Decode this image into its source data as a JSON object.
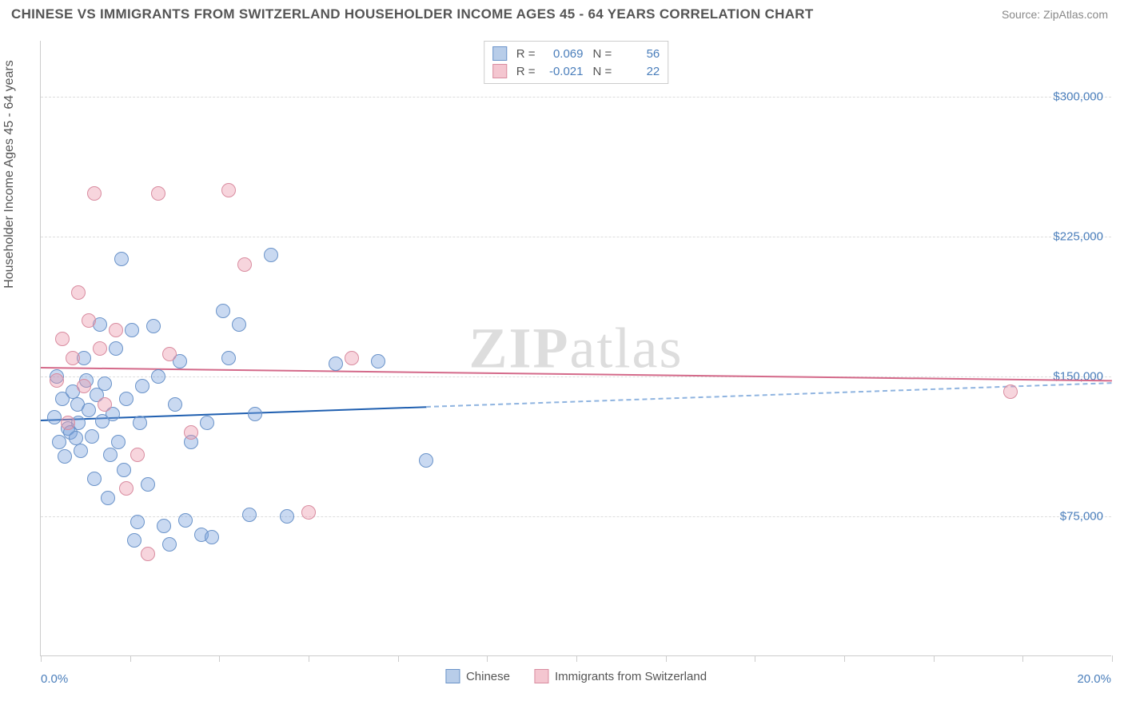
{
  "title": "CHINESE VS IMMIGRANTS FROM SWITZERLAND HOUSEHOLDER INCOME AGES 45 - 64 YEARS CORRELATION CHART",
  "source_label": "Source: ZipAtlas.com",
  "watermark_prefix": "ZIP",
  "watermark_suffix": "atlas",
  "y_axis_label": "Householder Income Ages 45 - 64 years",
  "chart": {
    "type": "scatter",
    "xlim": [
      0,
      20
    ],
    "ylim": [
      0,
      330000
    ],
    "x_tick_positions": [
      0,
      1.67,
      3.33,
      5,
      6.67,
      8.33,
      10,
      11.67,
      13.33,
      15,
      16.67,
      18.33,
      20
    ],
    "x_tick_labels": {
      "start": "0.0%",
      "end": "20.0%"
    },
    "y_ticks": [
      {
        "v": 75000,
        "label": "$75,000"
      },
      {
        "v": 150000,
        "label": "$150,000"
      },
      {
        "v": 225000,
        "label": "$225,000"
      },
      {
        "v": 300000,
        "label": "$300,000"
      }
    ],
    "grid_color": "#dddddd",
    "axis_color": "#cccccc",
    "background_color": "#ffffff",
    "point_radius": 9,
    "series": [
      {
        "name": "Chinese",
        "fill": "rgba(120,160,220,0.40)",
        "stroke": "#6a93c9",
        "swatch_fill": "#b8cde9",
        "swatch_border": "#6a93c9",
        "R": "0.069",
        "N": "56",
        "trend": {
          "y_start": 127000,
          "y_end": 147000,
          "solid_xmax": 7.2,
          "solid_color": "#1f5fb0",
          "dash_color": "#8fb4e0"
        },
        "points": [
          [
            0.25,
            128000
          ],
          [
            0.3,
            150000
          ],
          [
            0.35,
            115000
          ],
          [
            0.4,
            138000
          ],
          [
            0.45,
            107000
          ],
          [
            0.5,
            122000
          ],
          [
            0.55,
            120000
          ],
          [
            0.6,
            142000
          ],
          [
            0.65,
            117000
          ],
          [
            0.68,
            135000
          ],
          [
            0.7,
            125000
          ],
          [
            0.75,
            110000
          ],
          [
            0.8,
            160000
          ],
          [
            0.85,
            148000
          ],
          [
            0.9,
            132000
          ],
          [
            0.95,
            118000
          ],
          [
            1.0,
            95000
          ],
          [
            1.05,
            140000
          ],
          [
            1.1,
            178000
          ],
          [
            1.15,
            126000
          ],
          [
            1.2,
            146000
          ],
          [
            1.25,
            85000
          ],
          [
            1.3,
            108000
          ],
          [
            1.35,
            130000
          ],
          [
            1.4,
            165000
          ],
          [
            1.45,
            115000
          ],
          [
            1.5,
            213000
          ],
          [
            1.55,
            100000
          ],
          [
            1.6,
            138000
          ],
          [
            1.7,
            175000
          ],
          [
            1.75,
            62000
          ],
          [
            1.8,
            72000
          ],
          [
            1.85,
            125000
          ],
          [
            1.9,
            145000
          ],
          [
            2.0,
            92000
          ],
          [
            2.1,
            177000
          ],
          [
            2.2,
            150000
          ],
          [
            2.3,
            70000
          ],
          [
            2.4,
            60000
          ],
          [
            2.5,
            135000
          ],
          [
            2.6,
            158000
          ],
          [
            2.7,
            73000
          ],
          [
            2.8,
            115000
          ],
          [
            3.0,
            65000
          ],
          [
            3.1,
            125000
          ],
          [
            3.2,
            64000
          ],
          [
            3.4,
            185000
          ],
          [
            3.5,
            160000
          ],
          [
            3.7,
            178000
          ],
          [
            3.9,
            76000
          ],
          [
            4.0,
            130000
          ],
          [
            4.3,
            215000
          ],
          [
            4.6,
            75000
          ],
          [
            5.5,
            157000
          ],
          [
            6.3,
            158000
          ],
          [
            7.2,
            105000
          ]
        ]
      },
      {
        "name": "Immigrants from Switzerland",
        "fill": "rgba(235,150,170,0.40)",
        "stroke": "#d98ca0",
        "swatch_fill": "#f4c6d0",
        "swatch_border": "#d98ca0",
        "R": "-0.021",
        "N": "22",
        "trend": {
          "y_start": 155000,
          "y_end": 148000,
          "solid_xmax": 20,
          "solid_color": "#d46a8a",
          "dash_color": "#d46a8a"
        },
        "points": [
          [
            0.3,
            148000
          ],
          [
            0.4,
            170000
          ],
          [
            0.5,
            125000
          ],
          [
            0.6,
            160000
          ],
          [
            0.7,
            195000
          ],
          [
            0.8,
            145000
          ],
          [
            0.9,
            180000
          ],
          [
            1.0,
            248000
          ],
          [
            1.1,
            165000
          ],
          [
            1.2,
            135000
          ],
          [
            1.4,
            175000
          ],
          [
            1.6,
            90000
          ],
          [
            1.8,
            108000
          ],
          [
            2.0,
            55000
          ],
          [
            2.2,
            248000
          ],
          [
            2.4,
            162000
          ],
          [
            2.8,
            120000
          ],
          [
            3.5,
            250000
          ],
          [
            3.8,
            210000
          ],
          [
            5.0,
            77000
          ],
          [
            5.8,
            160000
          ],
          [
            18.1,
            142000
          ]
        ]
      }
    ]
  },
  "legend": {
    "series1_label": "Chinese",
    "series2_label": "Immigrants from Switzerland"
  },
  "stats_labels": {
    "R": "R =",
    "N": "N ="
  }
}
